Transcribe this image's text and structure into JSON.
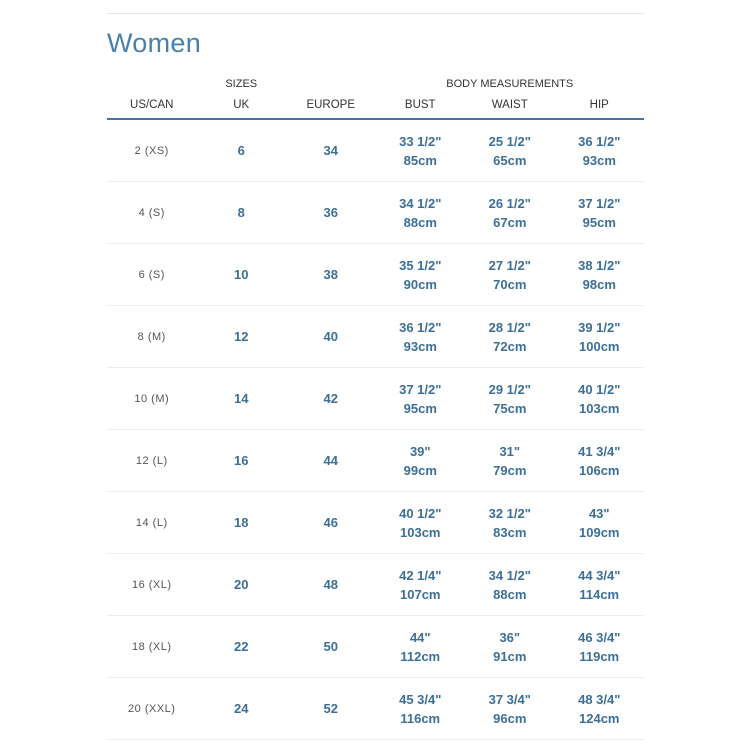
{
  "title": "Women",
  "group_headers": {
    "sizes": "SIZES",
    "body": "BODY MEASUREMENTS"
  },
  "columns": [
    "US/CAN",
    "UK",
    "EUROPE",
    "BUST",
    "WAIST",
    "HIP"
  ],
  "rows": [
    {
      "us": "2 (XS)",
      "uk": "6",
      "eu": "34",
      "bust_in": "33 1/2\"",
      "bust_cm": "85cm",
      "waist_in": "25 1/2\"",
      "waist_cm": "65cm",
      "hip_in": "36 1/2\"",
      "hip_cm": "93cm"
    },
    {
      "us": "4 (S)",
      "uk": "8",
      "eu": "36",
      "bust_in": "34 1/2\"",
      "bust_cm": "88cm",
      "waist_in": "26 1/2\"",
      "waist_cm": "67cm",
      "hip_in": "37 1/2\"",
      "hip_cm": "95cm"
    },
    {
      "us": "6 (S)",
      "uk": "10",
      "eu": "38",
      "bust_in": "35 1/2\"",
      "bust_cm": "90cm",
      "waist_in": "27 1/2\"",
      "waist_cm": "70cm",
      "hip_in": "38 1/2\"",
      "hip_cm": "98cm"
    },
    {
      "us": "8 (M)",
      "uk": "12",
      "eu": "40",
      "bust_in": "36 1/2\"",
      "bust_cm": "93cm",
      "waist_in": "28 1/2\"",
      "waist_cm": "72cm",
      "hip_in": "39 1/2\"",
      "hip_cm": "100cm"
    },
    {
      "us": "10 (M)",
      "uk": "14",
      "eu": "42",
      "bust_in": "37 1/2\"",
      "bust_cm": "95cm",
      "waist_in": "29 1/2\"",
      "waist_cm": "75cm",
      "hip_in": "40 1/2\"",
      "hip_cm": "103cm"
    },
    {
      "us": "12 (L)",
      "uk": "16",
      "eu": "44",
      "bust_in": "39\"",
      "bust_cm": "99cm",
      "waist_in": "31\"",
      "waist_cm": "79cm",
      "hip_in": "41 3/4\"",
      "hip_cm": "106cm"
    },
    {
      "us": "14 (L)",
      "uk": "18",
      "eu": "46",
      "bust_in": "40 1/2\"",
      "bust_cm": "103cm",
      "waist_in": "32 1/2\"",
      "waist_cm": "83cm",
      "hip_in": "43\"",
      "hip_cm": "109cm"
    },
    {
      "us": "16 (XL)",
      "uk": "20",
      "eu": "48",
      "bust_in": "42 1/4\"",
      "bust_cm": "107cm",
      "waist_in": "34 1/2\"",
      "waist_cm": "88cm",
      "hip_in": "44 3/4\"",
      "hip_cm": "114cm"
    },
    {
      "us": "18 (XL)",
      "uk": "22",
      "eu": "50",
      "bust_in": "44\"",
      "bust_cm": "112cm",
      "waist_in": "36\"",
      "waist_cm": "91cm",
      "hip_in": "46 3/4\"",
      "hip_cm": "119cm"
    },
    {
      "us": "20 (XXL)",
      "uk": "24",
      "eu": "52",
      "bust_in": "45 3/4\"",
      "bust_cm": "116cm",
      "waist_in": "37 3/4\"",
      "waist_cm": "96cm",
      "hip_in": "48 3/4\"",
      "hip_cm": "124cm"
    }
  ],
  "colors": {
    "accent": "#3f79a6",
    "value_text": "#3c6f98"
  }
}
